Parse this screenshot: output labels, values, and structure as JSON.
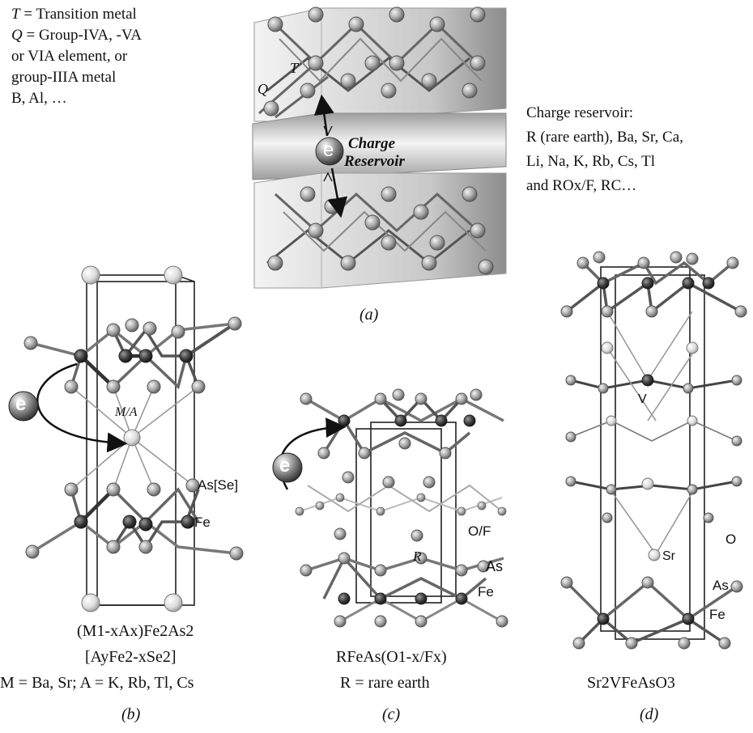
{
  "panel_a": {
    "legend_T": "= Transition metal",
    "legend_T_symbol": "T",
    "legend_Q_symbol": "Q",
    "legend_Q_line1": "= Group-IVA, -VA",
    "legend_Q_line2": "or VIA element, or",
    "legend_Q_line3": "group-IIIA metal",
    "legend_Q_line4": "B, Al, …",
    "reservoir_title": "Charge reservoir:",
    "reservoir_line1": "R (rare earth), Ba, Sr, Ca,",
    "reservoir_line2": "Li, Na, K, Rb, Cs, Tl",
    "reservoir_line3": "and ROx/F, RC…",
    "box_label_line1": "Charge",
    "box_label_line2": "Reservoir",
    "electron": "e",
    "atom_T": "T",
    "atom_Q": "Q",
    "label": "(a)"
  },
  "panel_b": {
    "site_label": "M/A",
    "atom_as": "As[Se]",
    "atom_fe": "Fe",
    "electron": "e",
    "formula1": "(M1-xAx)Fe2As2",
    "formula2": "[AyFe2-xSe2]",
    "formula3": "M = Ba, Sr; A = K, Rb, Tl, Cs",
    "label": "(b)"
  },
  "panel_c": {
    "atom_of": "O/F",
    "atom_r": "R",
    "atom_as": "As",
    "atom_fe": "Fe",
    "electron": "e",
    "formula1": "RFeAs(O1-x/Fx)",
    "formula2": "R = rare earth",
    "label": "(c)"
  },
  "panel_d": {
    "atom_v": "V",
    "atom_o": "O",
    "atom_sr": "Sr",
    "atom_as": "As",
    "atom_fe": "Fe",
    "formula": "Sr2VFeAsO3",
    "label": "(d)"
  }
}
